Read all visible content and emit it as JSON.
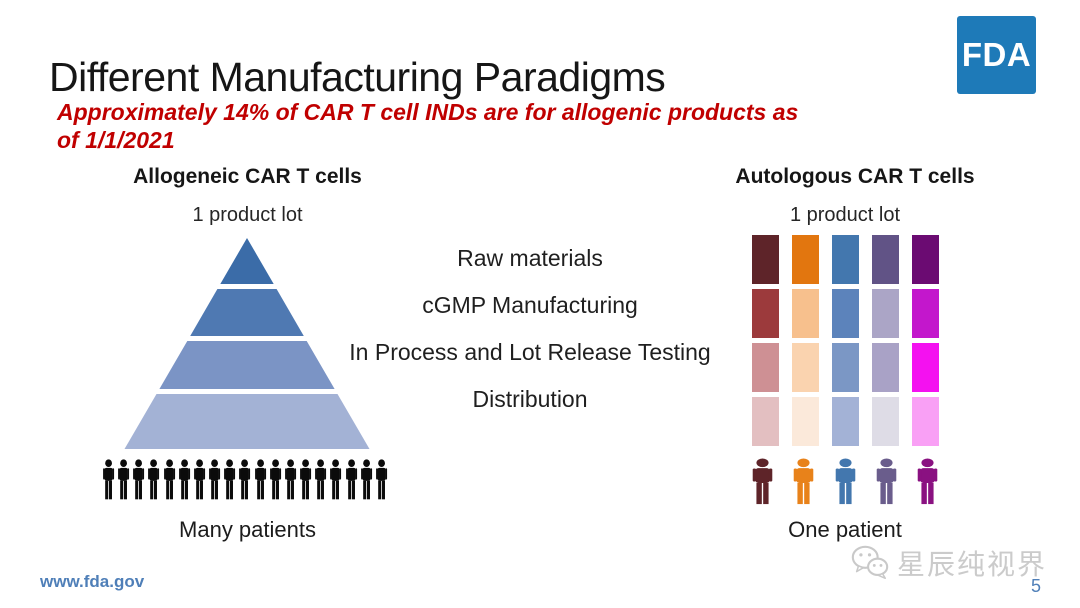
{
  "slide": {
    "title": "Different Manufacturing Paradigms",
    "subtitle": {
      "line1": "Approximately 14% of CAR T cell INDs are for allogenic products as",
      "line2": "of 1/1/2021",
      "color": "#c00000"
    },
    "fda_logo": {
      "text": "FDA",
      "background": "#1e7ab8",
      "text_color": "#ffffff"
    }
  },
  "left_panel": {
    "heading": "Allogeneic CAR T cells",
    "top_label": "1 product lot",
    "pyramid": {
      "band_colors": [
        "#3b6ca8",
        "#4f79b2",
        "#7b94c5",
        "#a3b2d5"
      ]
    },
    "patients": {
      "count": 19,
      "color": "#0b0b0b"
    },
    "bottom_label": "Many patients"
  },
  "process_steps": [
    "Raw materials",
    "cGMP Manufacturing",
    "In Process and Lot Release Testing",
    "Distribution"
  ],
  "right_panel": {
    "heading": "Autologous CAR T cells",
    "top_label": "1 product lot",
    "grid_cell_colors": [
      [
        "#5e2429",
        "#e2760f",
        "#4377ae",
        "#615386",
        "#6b0b72"
      ],
      [
        "#9c3a3c",
        "#f7c08d",
        "#5c83bb",
        "#aba5c6",
        "#c317cc"
      ],
      [
        "#ce9094",
        "#fad3af",
        "#7b97c5",
        "#a9a2c6",
        "#f411f0"
      ],
      [
        "#e3bfc1",
        "#fbe9da",
        "#a3b2d6",
        "#dedce6",
        "#f9a0f5"
      ]
    ],
    "patient_colors": [
      "#5e2429",
      "#e8821a",
      "#4377ae",
      "#6a5d8c",
      "#8a1181"
    ],
    "bottom_label": "One patient"
  },
  "footer": {
    "url": "www.fda.gov",
    "url_color": "#4f7fb8",
    "page_number": "5",
    "watermark_text": "星辰纯视界",
    "watermark_color": "#cbcbcb"
  }
}
